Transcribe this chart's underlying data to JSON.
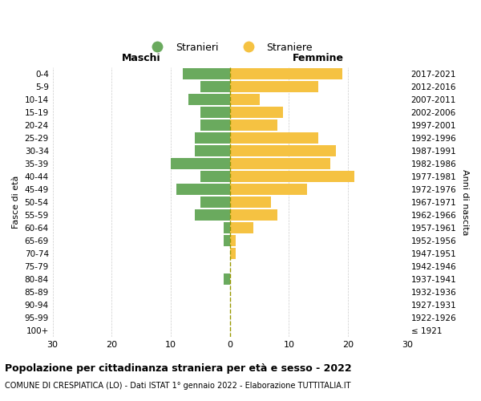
{
  "age_groups": [
    "100+",
    "95-99",
    "90-94",
    "85-89",
    "80-84",
    "75-79",
    "70-74",
    "65-69",
    "60-64",
    "55-59",
    "50-54",
    "45-49",
    "40-44",
    "35-39",
    "30-34",
    "25-29",
    "20-24",
    "15-19",
    "10-14",
    "5-9",
    "0-4"
  ],
  "birth_years": [
    "≤ 1921",
    "1922-1926",
    "1927-1931",
    "1932-1936",
    "1937-1941",
    "1942-1946",
    "1947-1951",
    "1952-1956",
    "1957-1961",
    "1962-1966",
    "1967-1971",
    "1972-1976",
    "1977-1981",
    "1982-1986",
    "1987-1991",
    "1992-1996",
    "1997-2001",
    "2002-2006",
    "2007-2011",
    "2012-2016",
    "2017-2021"
  ],
  "males": [
    0,
    0,
    0,
    0,
    1,
    0,
    0,
    1,
    1,
    6,
    5,
    9,
    5,
    10,
    6,
    6,
    5,
    5,
    7,
    5,
    8
  ],
  "females": [
    0,
    0,
    0,
    0,
    0,
    0,
    1,
    1,
    4,
    8,
    7,
    13,
    21,
    17,
    18,
    15,
    8,
    9,
    5,
    15,
    19
  ],
  "male_color": "#6aaa5e",
  "female_color": "#f5c242",
  "dashed_line_color": "#999900",
  "grid_color": "#cccccc",
  "background_color": "#ffffff",
  "title": "Popolazione per cittadinanza straniera per età e sesso - 2022",
  "subtitle": "COMUNE DI CRESPIATICA (LO) - Dati ISTAT 1° gennaio 2022 - Elaborazione TUTTITALIA.IT",
  "xlabel_left": "Maschi",
  "xlabel_right": "Femmine",
  "ylabel_left": "Fasce di età",
  "ylabel_right": "Anni di nascita",
  "legend_male": "Stranieri",
  "legend_female": "Straniere",
  "xlim": 30,
  "bar_height": 0.85
}
